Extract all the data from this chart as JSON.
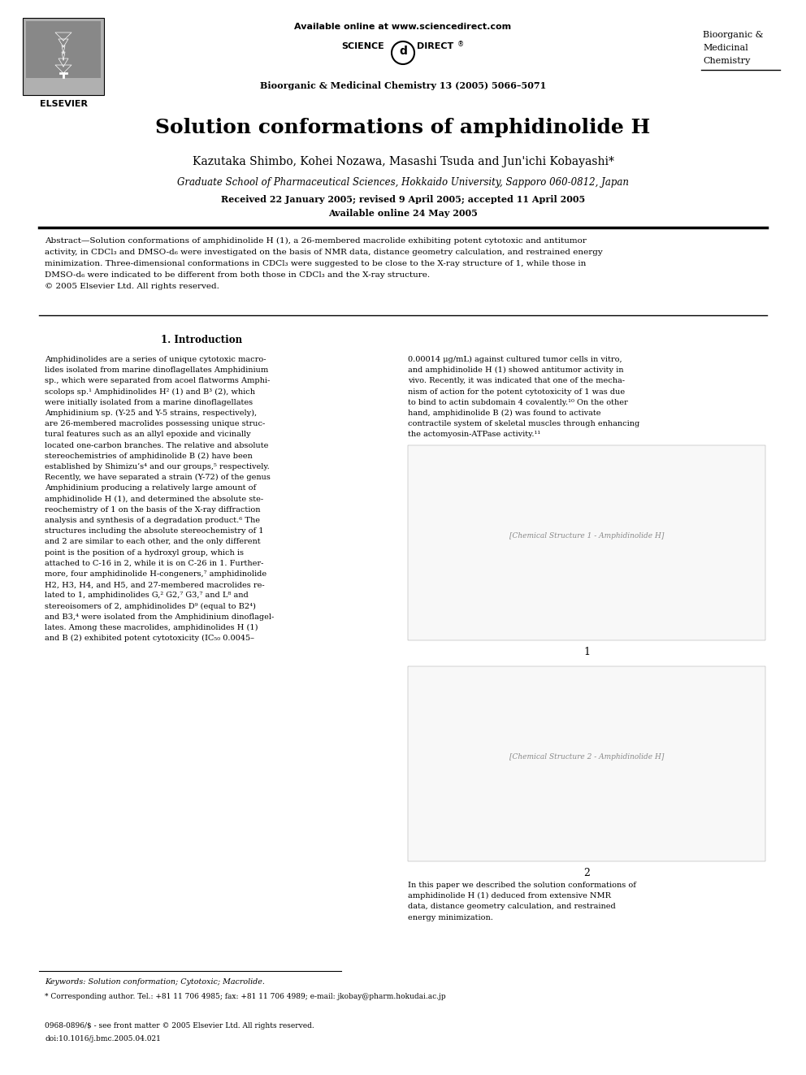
{
  "page_title": "Solution conformations of amphidinolide H",
  "authors": "Kazutaka Shimbo, Kohei Nozawa, Masashi Tsuda and Jun'ichi Kobayashi*",
  "affiliation": "Graduate School of Pharmaceutical Sciences, Hokkaido University, Sapporo 060-0812, Japan",
  "received": "Received 22 January 2005; revised 9 April 2005; accepted 11 April 2005",
  "available": "Available online 24 May 2005",
  "journal_header": "Available online at www.sciencedirect.com",
  "journal_name": "Bioorganic & Medicinal Chemistry 13 (2005) 5066–5071",
  "journal_right_1": "Bioorganic &",
  "journal_right_2": "Medicinal",
  "journal_right_3": "Chemistry",
  "abstract_bold": "Abstract",
  "abstract_body": "—Solution conformations of amphidinolide H (1), a 26-membered macrolide exhibiting potent cytotoxic and antitumor activity, in CDCl₃ and DMSO-d₆ were investigated on the basis of NMR data, distance geometry calculation, and restrained energy minimization. Three-dimensional conformations in CDCl₃ were suggested to be close to the X-ray structure of 1, while those in DMSO-d₆ were indicated to be different from both those in CDCl₃ and the X-ray structure.\n© 2005 Elsevier Ltd. All rights reserved.",
  "section1_title": "1. Introduction",
  "col1_para1": "Amphidinolides are a series of unique cytotoxic macrolides isolated from marine dinoflagellates Amphidinium sp., which were separated from acoel flatworms Amphiscolops sp.¹ Amphidinolides H² (1) and B³ (2), which were initially isolated from a marine dinoflagellates Amphidinium sp. (Y-25 and Y-5 strains, respectively), are 26-membered macrolides possessing unique structural features such as an allyl epoxide and vicinally located one-carbon branches. The relative and absolute stereochemistries of amphidinolide B (2) have been established by Shimizu’s⁴ and our groups,⁵ respectively. Recently, we have separated a strain (Y-72) of the genus Amphidinium producing a relatively large amount of amphidinolide H (1), and determined the absolute stereochemistry of 1 on the basis of the X-ray diffraction analysis and synthesis of a degradation product.⁶ The structures including the absolute stereochemistry of 1 and 2 are similar to each other, and the only different point is the position of a hydroxyl group, which is attached to C-16 in 2, while it is on C-26 in 1. Furthermore, four amphidinolide H-congeners,⁷ amphidinolide H2, H3, H4, and H5, and 27-membered macrolides related to 1, amphidinolides G,² G2,⁷ G3,⁷ and L⁸ and stereoisomers of 2, amphidinolides D⁹ (equal to B2⁴) and B3,⁴ were isolated from the Amphidinium dinoflagellates. Among these macrolides, amphidinolides H (1) and B (2) exhibited potent cytotoxicity (IC₅₀ 0.0045–",
  "col2_para1": "0.00014 μg/mL) against cultured tumor cells in vitro, and amphidinolide H (1) showed antitumor activity in vivo. Recently, it was indicated that one of the mechanism of action for the potent cytotoxicity of 1 was due to bind to actin subdomain 4 covalently.¹⁰ On the other hand, amphidinolide B (2) was found to activate contractile system of skeletal muscles through enhancing the actomyosin-ATPase activity.¹¹",
  "bottom_col2": "In this paper we described the solution conformations of amphidinolide H (1) deduced from extensive NMR data, distance geometry calculation, and restrained energy minimization.",
  "keywords": "Keywords: Solution conformation; Cytotoxic; Macrolide.",
  "footnote_star": "* Corresponding author. Tel.: +81 11 706 4985; fax: +81 11 706 4989; e-mail: jkobay@pharm.hokudai.ac.jp",
  "footnote_doi": "0968-0896/$ - see front matter © 2005 Elsevier Ltd. All rights reserved.\ndoi:10.1016/j.bmc.2005.04.021",
  "bg_color": "#ffffff"
}
